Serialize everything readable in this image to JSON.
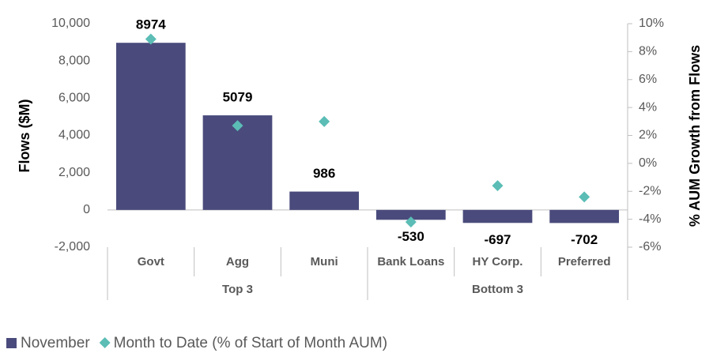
{
  "chart_data": {
    "type": "bar",
    "groups": [
      {
        "label": "Top 3",
        "categories": [
          "Govt",
          "Agg",
          "Muni"
        ]
      },
      {
        "label": "Bottom 3",
        "categories": [
          "Bank Loans",
          "HY Corp.",
          "Preferred"
        ]
      }
    ],
    "series": [
      {
        "name": "November",
        "type": "bar",
        "color": "#4a4b7c",
        "values": [
          8974,
          5079,
          986,
          -530,
          -697,
          -702
        ]
      },
      {
        "name": "Month to Date (% of Start of Month AUM)",
        "type": "scatter",
        "axis": "y2",
        "color": "#5bbdb5",
        "values": [
          8.9,
          2.7,
          3.0,
          -4.2,
          -1.6,
          -2.4
        ]
      }
    ],
    "ylabel": "Flows ($M)",
    "y2label": "% AUM Growth from Flows",
    "ylim": [
      -2000,
      10000
    ],
    "yticks": [
      {
        "value": -2000,
        "label": "-2,000"
      },
      0,
      {
        "value": 2000,
        "label": "2,000"
      },
      {
        "value": 4000,
        "label": "4,000"
      },
      {
        "value": 6000,
        "label": "6,000"
      },
      {
        "value": 8000,
        "label": "8,000"
      },
      {
        "value": 10000,
        "label": "10,000"
      }
    ],
    "y2lim": [
      -6,
      10
    ],
    "y2ticks": [
      {
        "value": -6,
        "label": "-6%"
      },
      {
        "value": -4,
        "label": "-4%"
      },
      {
        "value": -2,
        "label": "-2%"
      },
      {
        "value": 0,
        "label": "0%"
      },
      {
        "value": 2,
        "label": "2%"
      },
      {
        "value": 4,
        "label": "4%"
      },
      {
        "value": 6,
        "label": "6%"
      },
      {
        "value": 8,
        "label": "8%"
      },
      {
        "value": 10,
        "label": "10%"
      }
    ],
    "legend": "bottom"
  }
}
